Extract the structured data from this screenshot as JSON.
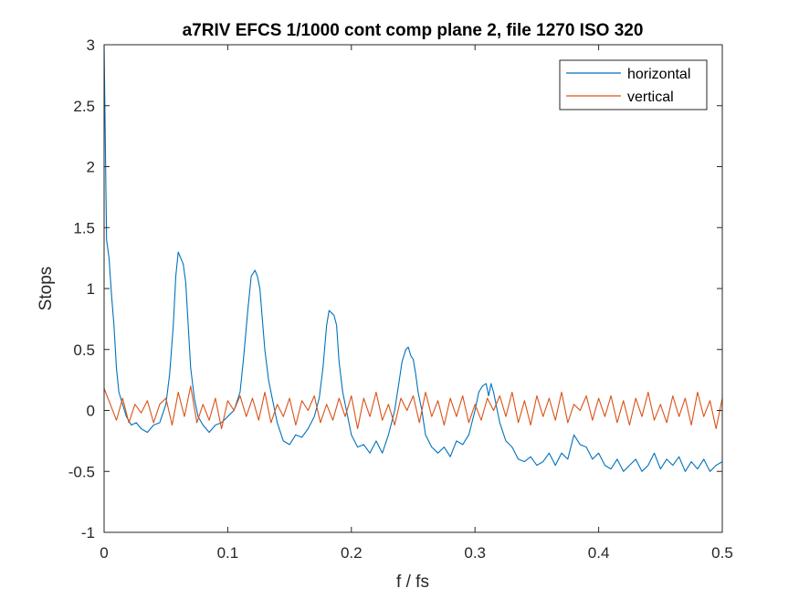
{
  "chart_data": {
    "type": "line",
    "title": "a7RIV EFCS 1/1000 cont comp plane 2, file 1270 ISO 320",
    "xlabel": "f / fs",
    "ylabel": "Stops",
    "xlim": [
      0,
      0.5
    ],
    "ylim": [
      -1,
      3
    ],
    "xticks": [
      0,
      0.1,
      0.2,
      0.3,
      0.4,
      0.5
    ],
    "xtick_labels": [
      "0",
      "0.1",
      "0.2",
      "0.3",
      "0.4",
      "0.5"
    ],
    "yticks": [
      -1,
      -0.5,
      0,
      0.5,
      1,
      1.5,
      2,
      2.5,
      3
    ],
    "ytick_labels": [
      "-1",
      "-0.5",
      "0",
      "0.5",
      "1",
      "1.5",
      "2",
      "2.5",
      "3"
    ],
    "grid": false,
    "legend_position": "top-right",
    "series": [
      {
        "name": "horizontal",
        "color": "#0072BD",
        "x": [
          0,
          0.002,
          0.004,
          0.006,
          0.008,
          0.01,
          0.012,
          0.015,
          0.018,
          0.022,
          0.026,
          0.03,
          0.035,
          0.04,
          0.045,
          0.05,
          0.053,
          0.056,
          0.058,
          0.06,
          0.062,
          0.064,
          0.066,
          0.068,
          0.07,
          0.073,
          0.076,
          0.08,
          0.085,
          0.09,
          0.095,
          0.1,
          0.105,
          0.11,
          0.113,
          0.116,
          0.119,
          0.122,
          0.124,
          0.126,
          0.128,
          0.13,
          0.133,
          0.136,
          0.14,
          0.145,
          0.15,
          0.155,
          0.16,
          0.165,
          0.17,
          0.174,
          0.177,
          0.18,
          0.182,
          0.184,
          0.186,
          0.188,
          0.19,
          0.193,
          0.196,
          0.2,
          0.205,
          0.21,
          0.215,
          0.22,
          0.225,
          0.23,
          0.235,
          0.238,
          0.241,
          0.244,
          0.246,
          0.248,
          0.25,
          0.252,
          0.254,
          0.257,
          0.26,
          0.265,
          0.27,
          0.275,
          0.28,
          0.285,
          0.29,
          0.295,
          0.3,
          0.303,
          0.306,
          0.309,
          0.311,
          0.313,
          0.315,
          0.317,
          0.32,
          0.325,
          0.33,
          0.335,
          0.34,
          0.345,
          0.35,
          0.355,
          0.36,
          0.365,
          0.37,
          0.375,
          0.38,
          0.385,
          0.39,
          0.395,
          0.4,
          0.405,
          0.41,
          0.415,
          0.42,
          0.425,
          0.43,
          0.435,
          0.44,
          0.445,
          0.45,
          0.455,
          0.46,
          0.465,
          0.47,
          0.475,
          0.48,
          0.485,
          0.49,
          0.495,
          0.5
        ],
        "y": [
          3.0,
          1.4,
          1.25,
          0.95,
          0.7,
          0.35,
          0.15,
          0.05,
          -0.05,
          -0.12,
          -0.1,
          -0.15,
          -0.18,
          -0.12,
          -0.1,
          0.05,
          0.3,
          0.7,
          1.1,
          1.3,
          1.25,
          1.2,
          1.05,
          0.7,
          0.35,
          0.1,
          -0.05,
          -0.12,
          -0.18,
          -0.12,
          -0.1,
          -0.05,
          0.0,
          0.15,
          0.45,
          0.8,
          1.1,
          1.15,
          1.1,
          1.0,
          0.75,
          0.5,
          0.25,
          0.1,
          -0.1,
          -0.25,
          -0.28,
          -0.2,
          -0.22,
          -0.15,
          -0.05,
          0.1,
          0.35,
          0.7,
          0.82,
          0.8,
          0.78,
          0.7,
          0.4,
          0.15,
          0.0,
          -0.2,
          -0.3,
          -0.28,
          -0.35,
          -0.25,
          -0.35,
          -0.2,
          0.0,
          0.2,
          0.4,
          0.5,
          0.52,
          0.45,
          0.42,
          0.3,
          0.15,
          0.0,
          -0.2,
          -0.3,
          -0.35,
          -0.3,
          -0.38,
          -0.25,
          -0.28,
          -0.2,
          0.0,
          0.15,
          0.2,
          0.22,
          0.12,
          0.22,
          0.15,
          0.05,
          -0.1,
          -0.25,
          -0.3,
          -0.4,
          -0.42,
          -0.38,
          -0.45,
          -0.42,
          -0.35,
          -0.45,
          -0.35,
          -0.4,
          -0.2,
          -0.28,
          -0.3,
          -0.4,
          -0.35,
          -0.45,
          -0.48,
          -0.4,
          -0.5,
          -0.45,
          -0.4,
          -0.5,
          -0.45,
          -0.35,
          -0.48,
          -0.4,
          -0.45,
          -0.38,
          -0.5,
          -0.42,
          -0.48,
          -0.4,
          -0.5,
          -0.45,
          -0.42
        ]
      },
      {
        "name": "vertical",
        "color": "#D95319",
        "x": [
          0,
          0.005,
          0.01,
          0.015,
          0.02,
          0.025,
          0.03,
          0.035,
          0.04,
          0.045,
          0.05,
          0.055,
          0.06,
          0.065,
          0.07,
          0.075,
          0.08,
          0.085,
          0.09,
          0.095,
          0.1,
          0.105,
          0.11,
          0.115,
          0.12,
          0.125,
          0.13,
          0.135,
          0.14,
          0.145,
          0.15,
          0.155,
          0.16,
          0.165,
          0.17,
          0.175,
          0.18,
          0.185,
          0.19,
          0.195,
          0.2,
          0.205,
          0.21,
          0.215,
          0.22,
          0.225,
          0.23,
          0.235,
          0.24,
          0.245,
          0.25,
          0.255,
          0.26,
          0.265,
          0.27,
          0.275,
          0.28,
          0.285,
          0.29,
          0.295,
          0.3,
          0.305,
          0.31,
          0.315,
          0.32,
          0.325,
          0.33,
          0.335,
          0.34,
          0.345,
          0.35,
          0.355,
          0.36,
          0.365,
          0.37,
          0.375,
          0.38,
          0.385,
          0.39,
          0.395,
          0.4,
          0.405,
          0.41,
          0.415,
          0.42,
          0.425,
          0.43,
          0.435,
          0.44,
          0.445,
          0.45,
          0.455,
          0.46,
          0.465,
          0.47,
          0.475,
          0.48,
          0.485,
          0.49,
          0.495,
          0.5
        ],
        "y": [
          0.18,
          0.05,
          -0.08,
          0.1,
          -0.1,
          0.05,
          -0.02,
          0.08,
          -0.1,
          0.05,
          0.1,
          -0.12,
          0.15,
          -0.05,
          0.2,
          -0.1,
          0.05,
          -0.08,
          0.1,
          -0.15,
          0.08,
          0.0,
          0.12,
          -0.05,
          0.1,
          -0.08,
          0.15,
          -0.1,
          0.05,
          -0.05,
          0.1,
          -0.12,
          0.08,
          0.0,
          0.12,
          -0.1,
          0.05,
          -0.08,
          0.1,
          -0.05,
          0.12,
          -0.15,
          0.1,
          -0.05,
          0.15,
          -0.08,
          0.05,
          -0.12,
          0.1,
          0.0,
          0.12,
          -0.1,
          0.15,
          -0.05,
          0.08,
          -0.12,
          0.1,
          -0.05,
          0.12,
          -0.1,
          0.05,
          -0.08,
          0.1,
          0.0,
          0.12,
          -0.05,
          0.15,
          -0.1,
          0.08,
          -0.12,
          0.12,
          -0.05,
          0.1,
          -0.08,
          0.15,
          -0.1,
          0.05,
          0.0,
          0.12,
          -0.08,
          0.1,
          -0.05,
          0.12,
          -0.1,
          0.08,
          -0.12,
          0.1,
          -0.05,
          0.15,
          -0.08,
          0.05,
          -0.1,
          0.12,
          -0.05,
          0.1,
          -0.12,
          0.15,
          -0.05,
          0.08,
          -0.15,
          0.1
        ]
      }
    ]
  }
}
